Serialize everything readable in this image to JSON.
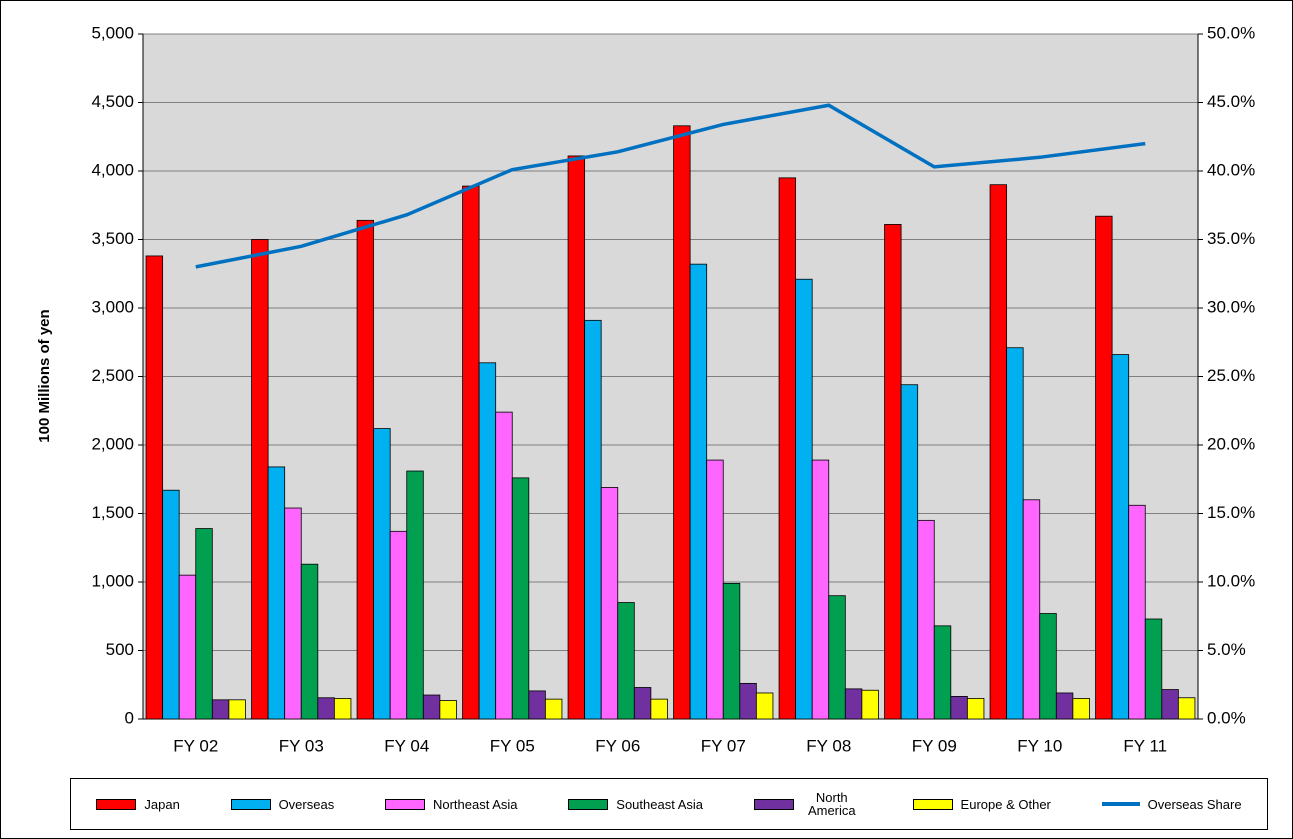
{
  "chart_data": {
    "type": "bar",
    "y_label": "100 Millions of yen",
    "categories": [
      "FY 02",
      "FY 03",
      "FY 04",
      "FY 05",
      "FY 06",
      "FY 07",
      "FY 08",
      "FY 09",
      "FY 10",
      "FY 11"
    ],
    "series": [
      {
        "name": "Japan",
        "color": "#ff0000",
        "values": [
          3380,
          3500,
          3640,
          3890,
          4110,
          4330,
          3950,
          3610,
          3900,
          3670
        ]
      },
      {
        "name": "Overseas",
        "color": "#00b0f0",
        "values": [
          1670,
          1840,
          2120,
          2600,
          2910,
          3320,
          3210,
          2440,
          2710,
          2660
        ]
      },
      {
        "name": "Northeast Asia",
        "color": "#ff66ff",
        "values": [
          1050,
          1540,
          1370,
          2240,
          1690,
          1890,
          1890,
          1450,
          1600,
          1560
        ]
      },
      {
        "name": "Southeast Asia",
        "color": "#00a050",
        "values": [
          1390,
          1130,
          1810,
          1760,
          850,
          990,
          900,
          680,
          770,
          730
        ]
      },
      {
        "name": "North America",
        "color": "#7030a0",
        "values": [
          140,
          155,
          175,
          205,
          230,
          260,
          220,
          165,
          190,
          215
        ]
      },
      {
        "name": "Europe & Other",
        "color": "#ffff00",
        "values": [
          140,
          150,
          135,
          145,
          145,
          190,
          210,
          150,
          150,
          155
        ]
      },
      {
        "name": "Overseas Share",
        "color": "#0070c0",
        "type": "line",
        "axis": "y2",
        "values": [
          33.0,
          34.5,
          36.8,
          40.1,
          41.4,
          43.4,
          44.8,
          40.3,
          41.0,
          42.0
        ]
      }
    ],
    "ylim": [
      0,
      5000
    ],
    "yticks": [
      0,
      500,
      {
        "value": 1000,
        "label": "1,000"
      },
      {
        "value": 1500,
        "label": "1,500"
      },
      {
        "value": 2000,
        "label": "2,000"
      },
      {
        "value": 2500,
        "label": "2,500"
      },
      {
        "value": 3000,
        "label": "3,000"
      },
      {
        "value": 3500,
        "label": "3,500"
      },
      {
        "value": 4000,
        "label": "4,000"
      },
      {
        "value": 4500,
        "label": "4,500"
      },
      {
        "value": 5000,
        "label": "5,000"
      }
    ],
    "y2lim": [
      0,
      50
    ],
    "y2ticks": [
      {
        "value": 0,
        "label": "0.0%"
      },
      {
        "value": 5,
        "label": "5.0%"
      },
      {
        "value": 10,
        "label": "10.0%"
      },
      {
        "value": 15,
        "label": "15.0%"
      },
      {
        "value": 20,
        "label": "20.0%"
      },
      {
        "value": 25,
        "label": "25.0%"
      },
      {
        "value": 30,
        "label": "30.0%"
      },
      {
        "value": 35,
        "label": "35.0%"
      },
      {
        "value": 40,
        "label": "40.0%"
      },
      {
        "value": 45,
        "label": "45.0%"
      },
      {
        "value": 50,
        "label": "50.0%"
      }
    ],
    "grid": true,
    "legend": "bottom"
  }
}
